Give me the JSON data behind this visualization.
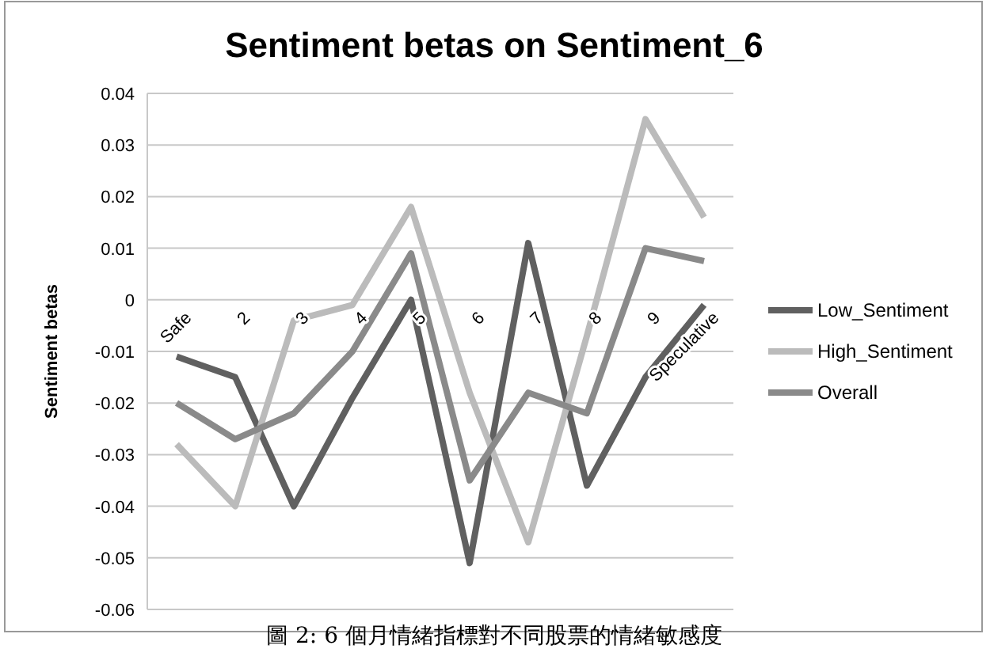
{
  "chart_data": {
    "type": "line",
    "title": "Sentiment betas on Sentiment_6",
    "ylabel": "Sentiment betas",
    "categories": [
      "Safe",
      "2",
      "3",
      "4",
      "5",
      "6",
      "7",
      "8",
      "9",
      "Speculative"
    ],
    "series": [
      {
        "name": "Low_Sentiment",
        "color": "#606060",
        "values": [
          -0.011,
          -0.015,
          -0.04,
          -0.019,
          0.0,
          -0.051,
          0.011,
          -0.036,
          -0.015,
          -0.001
        ]
      },
      {
        "name": "High_Sentiment",
        "color": "#bbbbbb",
        "values": [
          -0.028,
          -0.04,
          -0.004,
          -0.001,
          0.018,
          -0.018,
          -0.047,
          -0.007,
          0.035,
          0.016
        ]
      },
      {
        "name": "Overall",
        "color": "#8a8a8a",
        "values": [
          -0.02,
          -0.027,
          -0.022,
          -0.01,
          0.009,
          -0.035,
          -0.018,
          -0.022,
          0.01,
          0.0075
        ]
      }
    ],
    "ylim": [
      -0.06,
      0.04
    ],
    "yticks": [
      -0.06,
      -0.05,
      -0.04,
      -0.03,
      -0.02,
      -0.01,
      0,
      0.01,
      0.02,
      0.03,
      0.04
    ],
    "grid": "y",
    "legend": "right",
    "marker": "none",
    "line_style": "solid",
    "annotations": [
      "圖 2: 6 個月情緒指標對不同股票的情緒敏感度"
    ]
  }
}
